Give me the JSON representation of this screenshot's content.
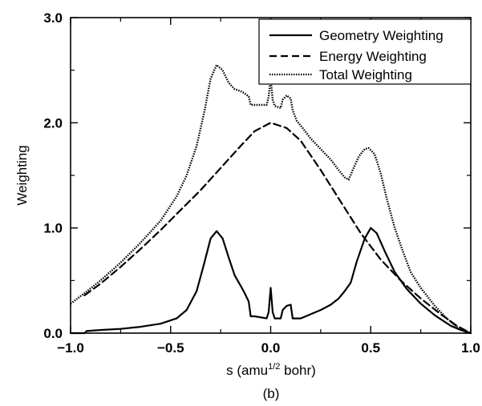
{
  "chart_data": {
    "type": "line",
    "xlabel": {
      "prefix": "s (amu",
      "superscript": "1/2",
      "suffix": " bohr)"
    },
    "ylabel": "Weighting",
    "panel_label": "(b)",
    "xlim": [
      -1.0,
      1.0
    ],
    "ylim": [
      0.0,
      3.0
    ],
    "x_ticks": [
      "-1.0",
      "-0.5",
      "0.0",
      "0.5",
      "1.0"
    ],
    "y_ticks": [
      "0.0",
      "1.0",
      "2.0",
      "3.0"
    ],
    "legend_position": "top-right",
    "grid": false,
    "series": [
      {
        "name": "Geometry Weighting",
        "style": "solid",
        "color": "#000000",
        "points": [
          [
            -1.0,
            0.0
          ],
          [
            -0.93,
            0.0
          ],
          [
            -0.92,
            0.02
          ],
          [
            -0.85,
            0.03
          ],
          [
            -0.75,
            0.04
          ],
          [
            -0.65,
            0.06
          ],
          [
            -0.55,
            0.09
          ],
          [
            -0.47,
            0.14
          ],
          [
            -0.42,
            0.22
          ],
          [
            -0.37,
            0.4
          ],
          [
            -0.33,
            0.68
          ],
          [
            -0.3,
            0.9
          ],
          [
            -0.27,
            0.97
          ],
          [
            -0.24,
            0.9
          ],
          [
            -0.21,
            0.72
          ],
          [
            -0.18,
            0.55
          ],
          [
            -0.15,
            0.45
          ],
          [
            -0.13,
            0.38
          ],
          [
            -0.11,
            0.3
          ],
          [
            -0.1,
            0.16
          ],
          [
            -0.08,
            0.16
          ],
          [
            -0.02,
            0.14
          ],
          [
            -0.01,
            0.2
          ],
          [
            0.0,
            0.43
          ],
          [
            0.01,
            0.2
          ],
          [
            0.02,
            0.14
          ],
          [
            0.05,
            0.14
          ],
          [
            0.06,
            0.22
          ],
          [
            0.08,
            0.26
          ],
          [
            0.1,
            0.27
          ],
          [
            0.11,
            0.14
          ],
          [
            0.15,
            0.14
          ],
          [
            0.2,
            0.18
          ],
          [
            0.25,
            0.22
          ],
          [
            0.3,
            0.27
          ],
          [
            0.34,
            0.33
          ],
          [
            0.37,
            0.4
          ],
          [
            0.4,
            0.48
          ],
          [
            0.43,
            0.68
          ],
          [
            0.47,
            0.9
          ],
          [
            0.5,
            1.0
          ],
          [
            0.53,
            0.95
          ],
          [
            0.57,
            0.78
          ],
          [
            0.62,
            0.58
          ],
          [
            0.68,
            0.42
          ],
          [
            0.75,
            0.28
          ],
          [
            0.82,
            0.17
          ],
          [
            0.9,
            0.07
          ],
          [
            0.95,
            0.03
          ],
          [
            1.0,
            0.0
          ]
        ]
      },
      {
        "name": "Energy Weighting",
        "style": "dashed",
        "color": "#000000",
        "points": [
          [
            -0.93,
            0.36
          ],
          [
            -0.85,
            0.47
          ],
          [
            -0.75,
            0.63
          ],
          [
            -0.65,
            0.8
          ],
          [
            -0.55,
            0.98
          ],
          [
            -0.45,
            1.17
          ],
          [
            -0.35,
            1.36
          ],
          [
            -0.25,
            1.57
          ],
          [
            -0.15,
            1.78
          ],
          [
            -0.08,
            1.92
          ],
          [
            0.0,
            2.0
          ],
          [
            0.08,
            1.95
          ],
          [
            0.15,
            1.83
          ],
          [
            0.25,
            1.55
          ],
          [
            0.35,
            1.25
          ],
          [
            0.45,
            0.95
          ],
          [
            0.55,
            0.7
          ],
          [
            0.65,
            0.5
          ],
          [
            0.75,
            0.33
          ],
          [
            0.85,
            0.18
          ],
          [
            0.93,
            0.07
          ],
          [
            1.0,
            0.0
          ]
        ]
      },
      {
        "name": "Total Weighting",
        "style": "dotted",
        "color": "#000000",
        "points": [
          [
            -1.0,
            0.28
          ],
          [
            -0.93,
            0.38
          ],
          [
            -0.85,
            0.5
          ],
          [
            -0.75,
            0.67
          ],
          [
            -0.65,
            0.86
          ],
          [
            -0.55,
            1.07
          ],
          [
            -0.47,
            1.3
          ],
          [
            -0.42,
            1.5
          ],
          [
            -0.37,
            1.78
          ],
          [
            -0.33,
            2.12
          ],
          [
            -0.3,
            2.42
          ],
          [
            -0.27,
            2.55
          ],
          [
            -0.24,
            2.5
          ],
          [
            -0.21,
            2.38
          ],
          [
            -0.18,
            2.32
          ],
          [
            -0.15,
            2.3
          ],
          [
            -0.13,
            2.28
          ],
          [
            -0.11,
            2.25
          ],
          [
            -0.1,
            2.17
          ],
          [
            -0.08,
            2.17
          ],
          [
            -0.02,
            2.17
          ],
          [
            -0.01,
            2.25
          ],
          [
            0.0,
            2.42
          ],
          [
            0.01,
            2.22
          ],
          [
            0.02,
            2.16
          ],
          [
            0.05,
            2.14
          ],
          [
            0.06,
            2.22
          ],
          [
            0.08,
            2.26
          ],
          [
            0.1,
            2.23
          ],
          [
            0.11,
            2.12
          ],
          [
            0.13,
            2.02
          ],
          [
            0.16,
            1.95
          ],
          [
            0.2,
            1.85
          ],
          [
            0.25,
            1.75
          ],
          [
            0.3,
            1.65
          ],
          [
            0.34,
            1.55
          ],
          [
            0.37,
            1.48
          ],
          [
            0.39,
            1.46
          ],
          [
            0.41,
            1.55
          ],
          [
            0.44,
            1.68
          ],
          [
            0.47,
            1.75
          ],
          [
            0.49,
            1.76
          ],
          [
            0.52,
            1.7
          ],
          [
            0.55,
            1.52
          ],
          [
            0.58,
            1.28
          ],
          [
            0.62,
            1.0
          ],
          [
            0.66,
            0.78
          ],
          [
            0.7,
            0.58
          ],
          [
            0.75,
            0.43
          ],
          [
            0.82,
            0.26
          ],
          [
            0.88,
            0.14
          ],
          [
            0.93,
            0.06
          ],
          [
            0.97,
            0.02
          ],
          [
            1.0,
            0.0
          ]
        ]
      }
    ]
  }
}
